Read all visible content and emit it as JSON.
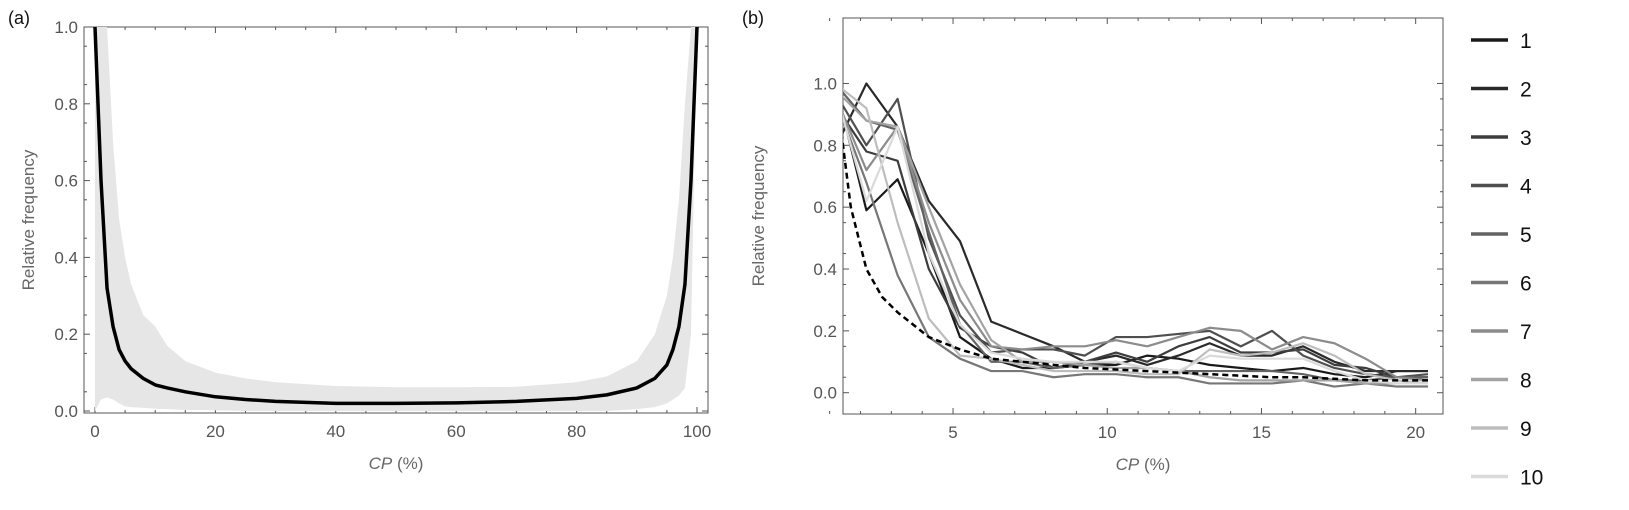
{
  "chart_data": [
    {
      "type": "area",
      "panel_label": "(a)",
      "xlabel_italic": "CP",
      "xlabel_unit": " (%)",
      "ylabel": "Relative frequency",
      "xlim": [
        0,
        100
      ],
      "ylim": [
        0,
        1.0
      ],
      "xticks": [
        0,
        20,
        40,
        60,
        80,
        100
      ],
      "yticks": [
        "0.0",
        "0.2",
        "0.4",
        "0.6",
        "0.8",
        "1.0"
      ],
      "x": [
        0,
        1,
        2,
        3,
        4,
        5,
        6,
        8,
        10,
        12,
        15,
        20,
        25,
        30,
        40,
        50,
        60,
        70,
        80,
        85,
        90,
        93,
        95,
        96,
        97,
        98,
        99,
        100
      ],
      "mean": [
        1.0,
        0.6,
        0.32,
        0.22,
        0.16,
        0.13,
        0.11,
        0.085,
        0.068,
        0.06,
        0.05,
        0.037,
        0.03,
        0.025,
        0.02,
        0.02,
        0.021,
        0.025,
        0.033,
        0.042,
        0.06,
        0.085,
        0.12,
        0.16,
        0.22,
        0.33,
        0.6,
        1.0
      ],
      "band_upper": [
        1.0,
        1.0,
        1.0,
        0.7,
        0.5,
        0.4,
        0.33,
        0.25,
        0.22,
        0.17,
        0.13,
        0.1,
        0.085,
        0.075,
        0.065,
        0.062,
        0.062,
        0.063,
        0.075,
        0.09,
        0.13,
        0.2,
        0.3,
        0.4,
        0.55,
        0.8,
        1.0,
        1.0
      ],
      "band_lower": [
        0.0,
        0.03,
        0.035,
        0.03,
        0.02,
        0.012,
        0.01,
        0.008,
        0.006,
        0.005,
        0.003,
        0.002,
        0,
        0,
        0,
        0,
        0,
        0,
        0,
        0,
        0.005,
        0.01,
        0.02,
        0.03,
        0.04,
        0.06,
        0.2,
        1.0
      ],
      "colors": {
        "mean": "#000000",
        "band": "#e6e6e6"
      }
    },
    {
      "type": "line",
      "panel_label": "(b)",
      "xlabel_italic": "CP",
      "xlabel_unit": " (%)",
      "ylabel": "Relative frequency",
      "xlim": [
        0.2,
        20.4
      ],
      "ylim": [
        -0.03,
        1.05
      ],
      "xticks": [
        5,
        10,
        15,
        20
      ],
      "yticks": [
        "0.0",
        "0.2",
        "0.4",
        "0.6",
        "0.8",
        "1.0"
      ],
      "x": [
        1,
        2,
        3,
        4,
        5,
        6,
        7,
        8,
        9,
        10,
        11,
        12,
        13,
        14,
        15,
        16,
        17,
        18,
        19,
        20
      ],
      "legend_position": "right",
      "series": [
        {
          "name": "1",
          "color": "#1a1a1a",
          "values": [
            1.0,
            0.59,
            0.69,
            0.45,
            0.18,
            0.11,
            0.08,
            0.08,
            0.09,
            0.09,
            0.12,
            0.11,
            0.09,
            0.08,
            0.07,
            0.08,
            0.06,
            0.05,
            0.07,
            0.07
          ]
        },
        {
          "name": "2",
          "color": "#2a2a2a",
          "values": [
            0.79,
            1.0,
            0.86,
            0.62,
            0.49,
            0.23,
            0.19,
            0.15,
            0.1,
            0.12,
            0.09,
            0.12,
            0.16,
            0.12,
            0.12,
            0.15,
            0.1,
            0.07,
            0.07,
            0.07
          ]
        },
        {
          "name": "3",
          "color": "#3d3d3d",
          "values": [
            0.93,
            0.78,
            0.75,
            0.4,
            0.21,
            0.15,
            0.13,
            0.08,
            0.1,
            0.13,
            0.1,
            0.15,
            0.18,
            0.13,
            0.13,
            0.14,
            0.09,
            0.08,
            0.05,
            0.05
          ]
        },
        {
          "name": "4",
          "color": "#4f4f4f",
          "values": [
            0.97,
            0.8,
            0.95,
            0.5,
            0.25,
            0.13,
            0.14,
            0.14,
            0.12,
            0.18,
            0.18,
            0.19,
            0.2,
            0.15,
            0.2,
            0.12,
            0.08,
            0.06,
            0.05,
            0.06
          ]
        },
        {
          "name": "5",
          "color": "#636363",
          "values": [
            1.0,
            0.88,
            0.85,
            0.52,
            0.22,
            0.1,
            0.1,
            0.08,
            0.09,
            0.1,
            0.08,
            0.07,
            0.07,
            0.07,
            0.07,
            0.06,
            0.04,
            0.04,
            0.05,
            0.05
          ]
        },
        {
          "name": "6",
          "color": "#777777",
          "values": [
            0.95,
            0.68,
            0.38,
            0.18,
            0.11,
            0.07,
            0.07,
            0.05,
            0.06,
            0.06,
            0.05,
            0.05,
            0.03,
            0.03,
            0.03,
            0.04,
            0.02,
            0.03,
            0.02,
            0.02
          ]
        },
        {
          "name": "7",
          "color": "#8c8c8c",
          "values": [
            0.96,
            0.72,
            0.86,
            0.55,
            0.3,
            0.15,
            0.14,
            0.15,
            0.15,
            0.17,
            0.15,
            0.18,
            0.21,
            0.2,
            0.14,
            0.18,
            0.16,
            0.11,
            0.05,
            0.04
          ]
        },
        {
          "name": "8",
          "color": "#a3a3a3",
          "values": [
            0.98,
            0.88,
            0.86,
            0.6,
            0.35,
            0.17,
            0.1,
            0.1,
            0.09,
            0.08,
            0.08,
            0.07,
            0.05,
            0.04,
            0.04,
            0.04,
            0.04,
            0.03,
            0.03,
            0.03
          ]
        },
        {
          "name": "9",
          "color": "#bdbdbd",
          "values": [
            1.0,
            0.92,
            0.55,
            0.24,
            0.12,
            0.11,
            0.09,
            0.07,
            0.07,
            0.07,
            0.06,
            0.06,
            0.14,
            0.12,
            0.13,
            0.16,
            0.12,
            0.06,
            0.04,
            0.03
          ]
        },
        {
          "name": "10",
          "color": "#dadada",
          "values": [
            0.98,
            0.62,
            0.86,
            0.45,
            0.22,
            0.13,
            0.11,
            0.1,
            0.1,
            0.1,
            0.08,
            0.07,
            0.12,
            0.11,
            0.11,
            0.11,
            0.07,
            0.04,
            0.03,
            0.03
          ]
        }
      ],
      "reference_dashed": {
        "color": "#000000",
        "x": [
          1,
          1.5,
          2,
          2.5,
          3,
          4,
          5,
          6,
          7,
          8,
          9,
          10,
          11,
          12,
          13,
          14,
          15,
          16,
          17,
          18,
          19,
          20
        ],
        "values": [
          1.0,
          0.6,
          0.4,
          0.31,
          0.26,
          0.18,
          0.14,
          0.11,
          0.1,
          0.09,
          0.08,
          0.075,
          0.07,
          0.065,
          0.06,
          0.055,
          0.05,
          0.05,
          0.045,
          0.04,
          0.04,
          0.04
        ]
      }
    }
  ]
}
